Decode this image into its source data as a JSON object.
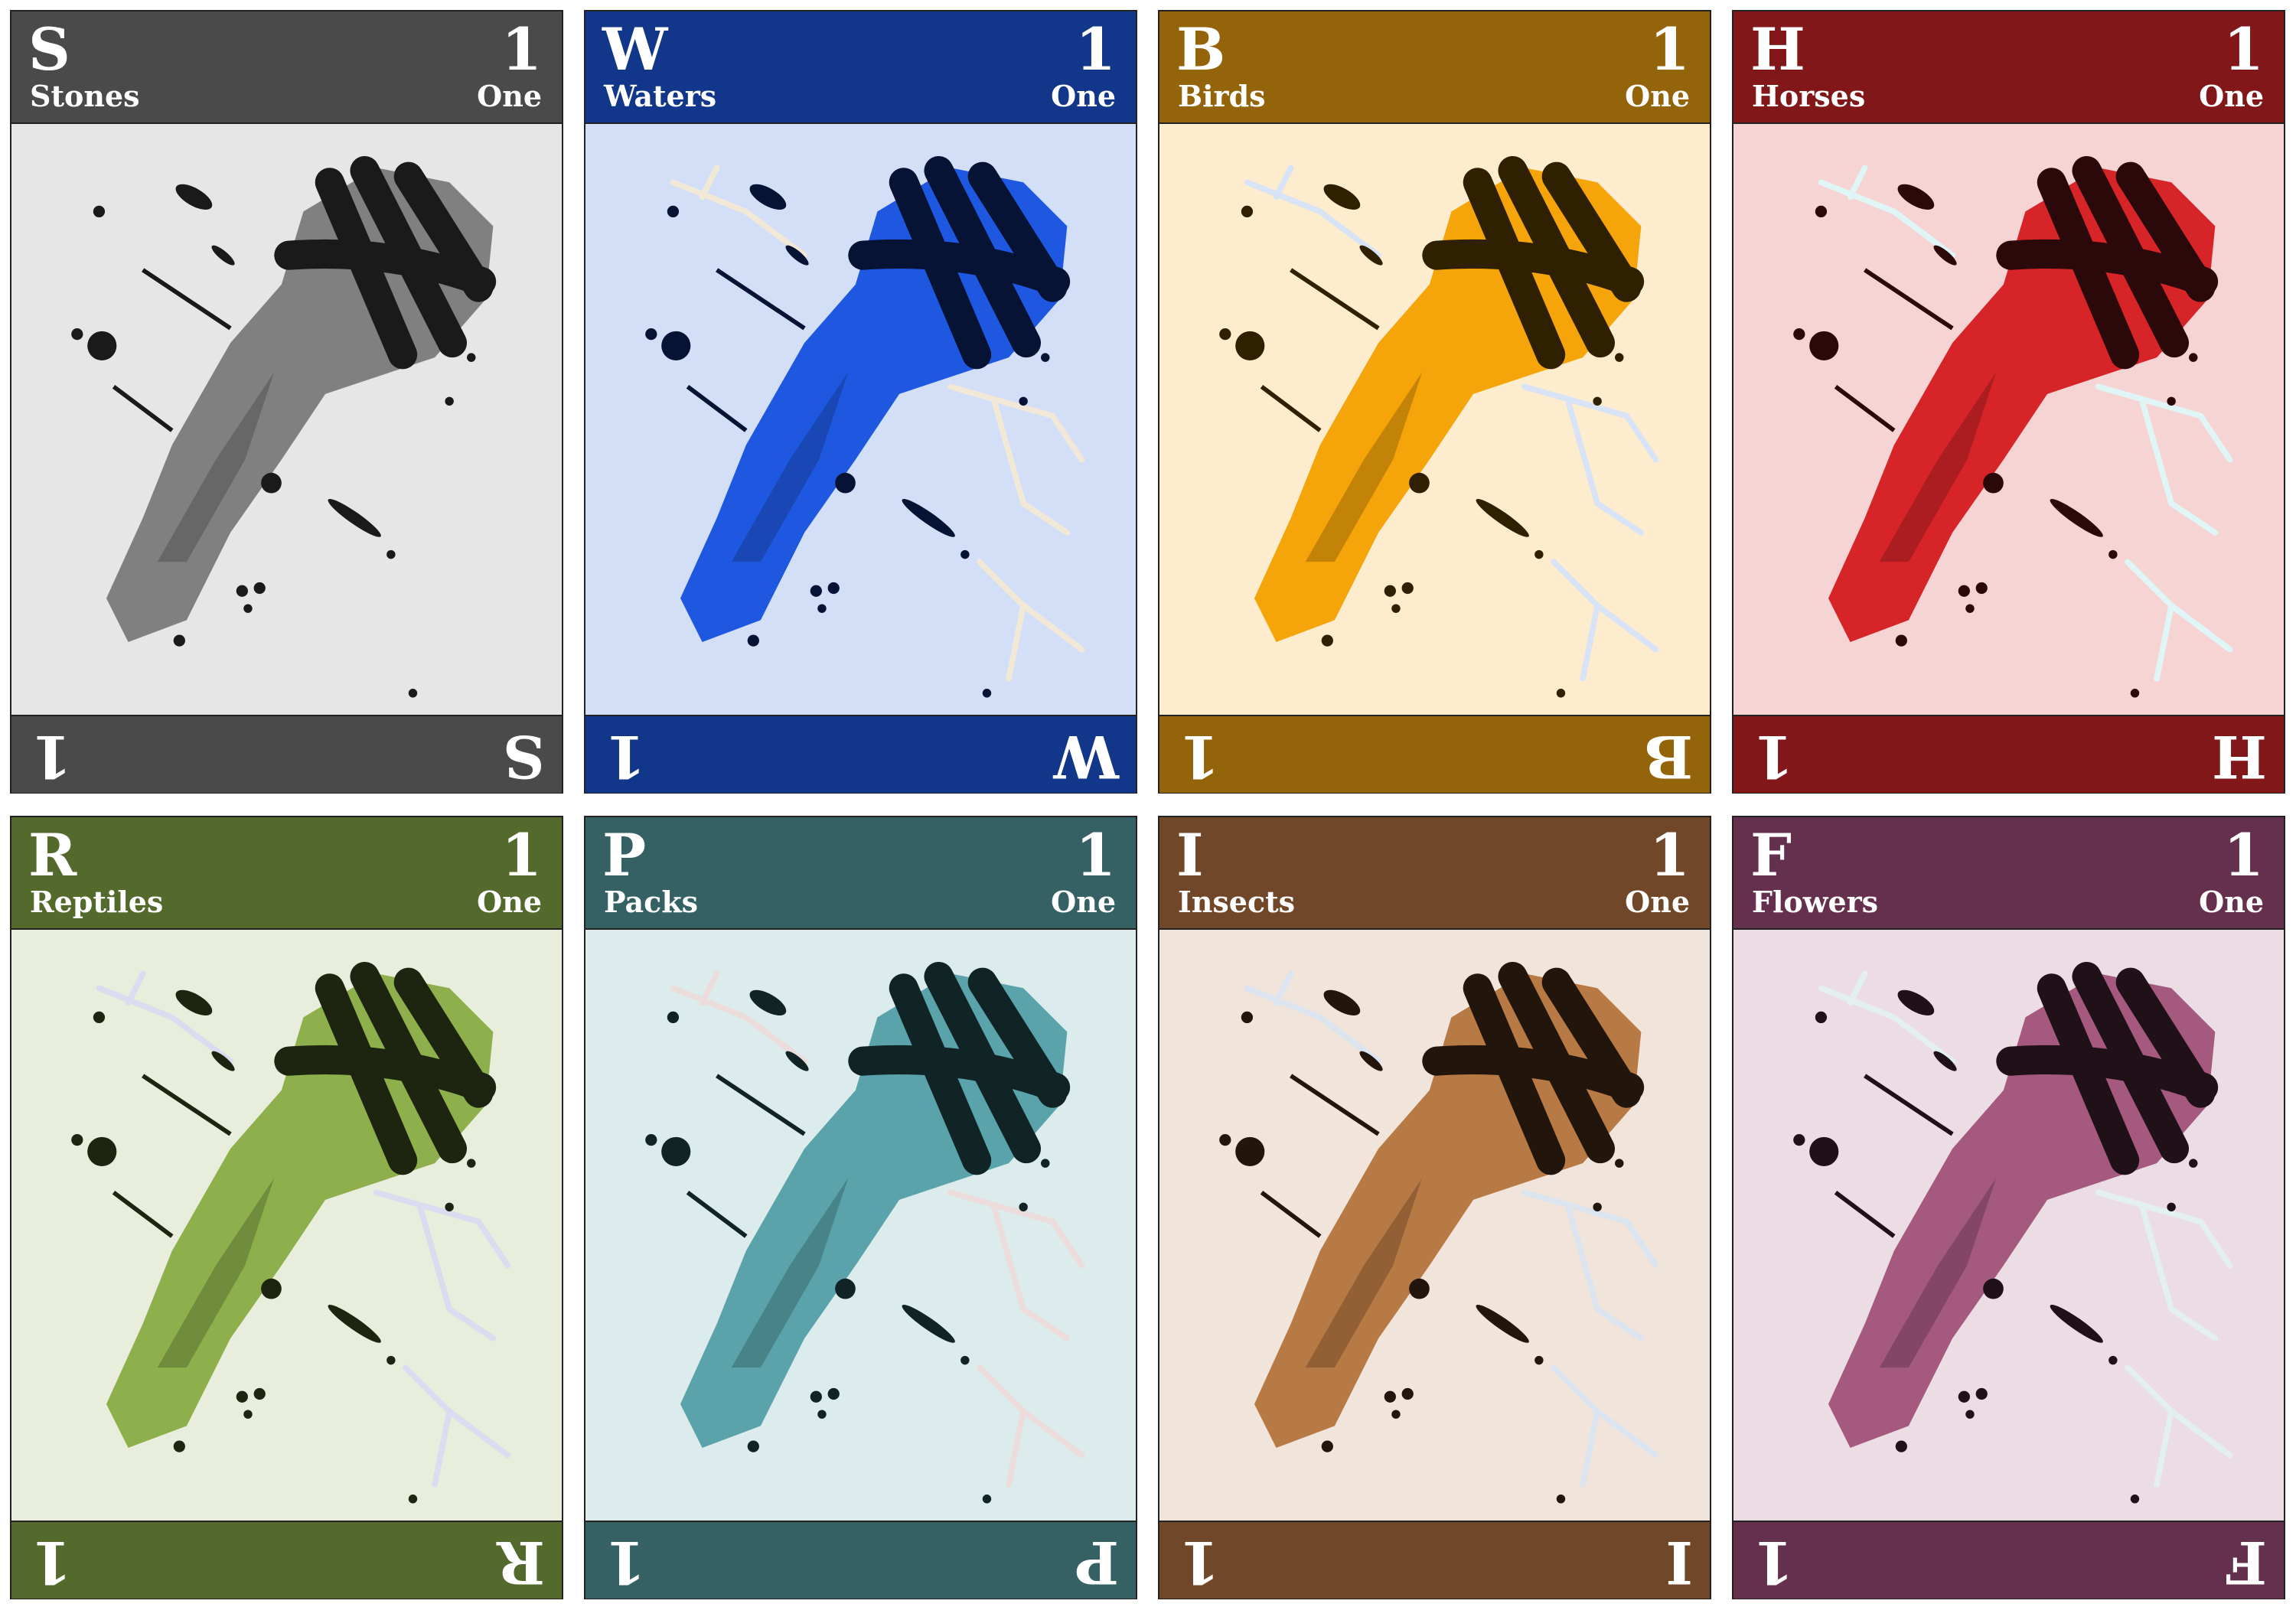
{
  "cards": [
    {
      "letter": "S",
      "name": "Stones",
      "number": 1,
      "word": "One"
    },
    {
      "letter": "W",
      "name": "Waters",
      "number": 1,
      "word": "One"
    },
    {
      "letter": "B",
      "name": "Birds",
      "number": 1,
      "word": "One"
    },
    {
      "letter": "H",
      "name": "Horses",
      "number": 1,
      "word": "One"
    },
    {
      "letter": "R",
      "name": "Reptiles",
      "number": 1,
      "word": "One"
    },
    {
      "letter": "P",
      "name": "Packs",
      "number": 1,
      "word": "One"
    },
    {
      "letter": "I",
      "name": "Insects",
      "number": 1,
      "word": "One"
    },
    {
      "letter": "F",
      "name": "Flowers",
      "number": 1,
      "word": "One"
    }
  ]
}
